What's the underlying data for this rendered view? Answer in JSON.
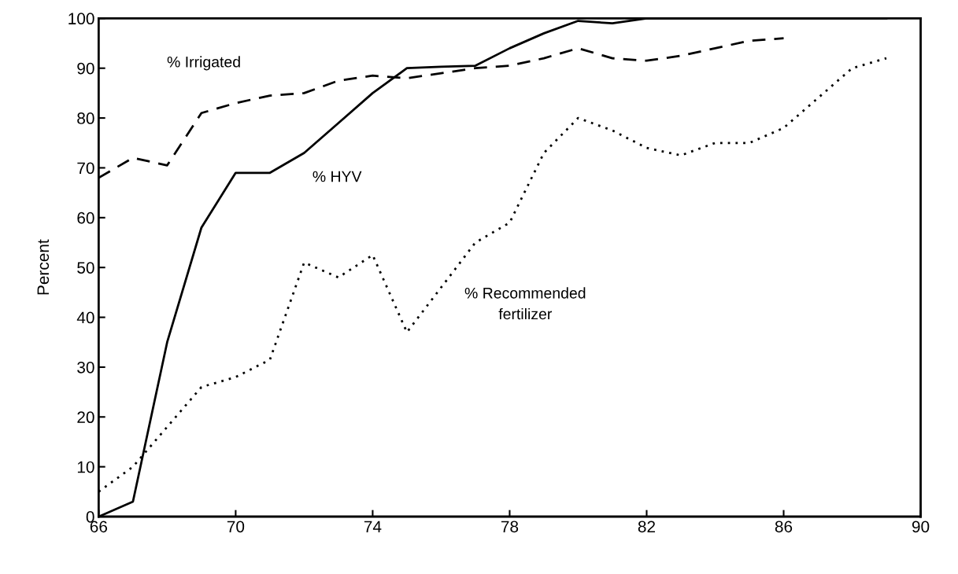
{
  "chart_data": {
    "type": "line",
    "ylabel": "Percent",
    "x": [
      66,
      67,
      68,
      69,
      70,
      71,
      72,
      73,
      74,
      75,
      76,
      77,
      78,
      79,
      80,
      81,
      82,
      83,
      84,
      85,
      86,
      87,
      88,
      89
    ],
    "series": [
      {
        "name": "% HYV",
        "color": "#000000",
        "line_style": "solid",
        "values": [
          0,
          3,
          35,
          58,
          69,
          69,
          73,
          79,
          85,
          90,
          90.3,
          90.5,
          94,
          97,
          99.5,
          99,
          100,
          100,
          100,
          100,
          100,
          100,
          100,
          100
        ]
      },
      {
        "name": "% Irrigated",
        "color": "#000000",
        "line_style": "dashed",
        "values": [
          68,
          72,
          70.5,
          81,
          83,
          84.5,
          85,
          87.5,
          88.5,
          88,
          89,
          90,
          90.5,
          92,
          94,
          92,
          91.5,
          92.5,
          94,
          95.5,
          96,
          null,
          null,
          null
        ]
      },
      {
        "name": "% Recommended\nfertilizer",
        "color": "#000000",
        "line_style": "dotted",
        "values": [
          5,
          10,
          18,
          26,
          28,
          31.5,
          51,
          48,
          52.5,
          37,
          46,
          55,
          59,
          73,
          80,
          77.5,
          74,
          72.5,
          75,
          75,
          78,
          84,
          90,
          92
        ]
      }
    ],
    "xlim": [
      66,
      90
    ],
    "xticks": [
      66,
      70,
      74,
      78,
      82,
      86,
      90
    ],
    "ylim": [
      0,
      100
    ],
    "yticks": [
      0,
      10,
      20,
      30,
      40,
      50,
      60,
      70,
      80,
      90,
      100
    ],
    "grid": false,
    "marker": "none"
  }
}
